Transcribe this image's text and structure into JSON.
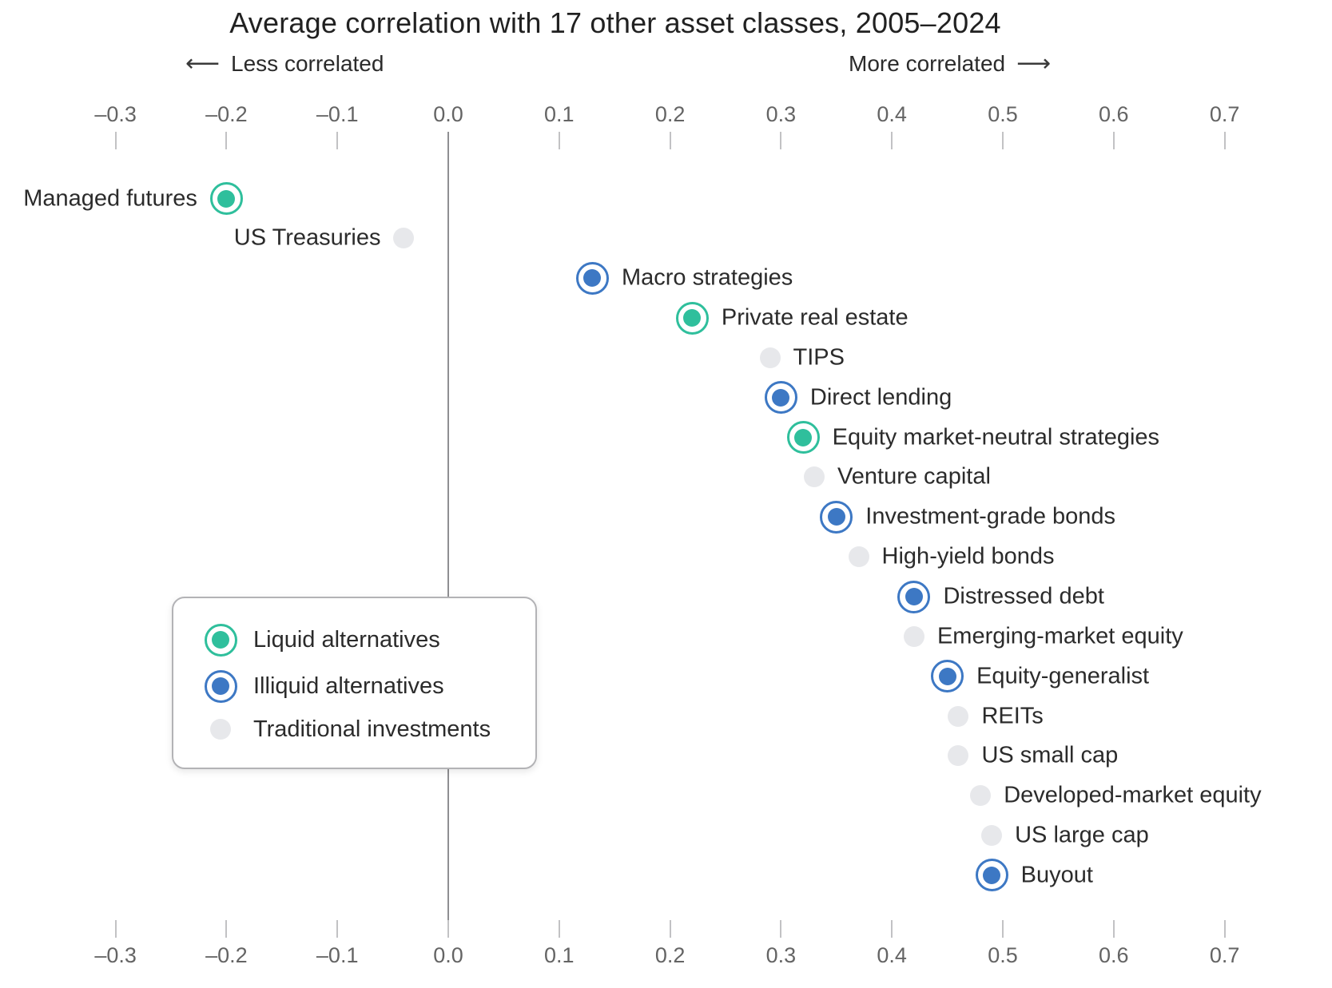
{
  "title": "Average correlation with 17 other asset classes, 2005–2024",
  "direction_labels": {
    "less": "Less correlated",
    "more": "More correlated",
    "left_arrow": "⟵",
    "right_arrow": "⟶"
  },
  "legend": {
    "items": [
      {
        "label": "Liquid alternatives",
        "category": "liquid"
      },
      {
        "label": "Illiquid alternatives",
        "category": "illiquid"
      },
      {
        "label": "Traditional investments",
        "category": "traditional"
      }
    ]
  },
  "colors": {
    "liquid": "#2fbf9c",
    "illiquid": "#3d78c4",
    "traditional": "#e7e8eb",
    "text": "#2b2b2b",
    "axis_text": "#646464",
    "tick_mark": "#c2c2c4",
    "zero_line": "#8f8f92",
    "legend_border": "#b3b3b6"
  },
  "chart_data": {
    "type": "scatter",
    "title": "Average correlation with 17 other asset classes, 2005–2024",
    "xlabel": "Average correlation",
    "ylabel": "",
    "xlim": [
      -0.3,
      0.7
    ],
    "grid": false,
    "legend_position": "boxed, middle-left",
    "x_ticks": [
      -0.3,
      -0.2,
      -0.1,
      0.0,
      0.1,
      0.2,
      0.3,
      0.4,
      0.5,
      0.6,
      0.7
    ],
    "x_tick_labels": [
      "–0.3",
      "–0.2",
      "–0.1",
      "0.0",
      "0.1",
      "0.2",
      "0.3",
      "0.4",
      "0.5",
      "0.6",
      "0.7"
    ],
    "points": [
      {
        "label": "Managed futures",
        "value": -0.2,
        "category": "liquid",
        "label_side": "left"
      },
      {
        "label": "US Treasuries",
        "value": -0.04,
        "category": "traditional",
        "label_side": "left"
      },
      {
        "label": "Macro strategies",
        "value": 0.13,
        "category": "illiquid",
        "label_side": "right"
      },
      {
        "label": "Private real estate",
        "value": 0.22,
        "category": "liquid",
        "label_side": "right"
      },
      {
        "label": "TIPS",
        "value": 0.29,
        "category": "traditional",
        "label_side": "right"
      },
      {
        "label": "Direct lending",
        "value": 0.3,
        "category": "illiquid",
        "label_side": "right"
      },
      {
        "label": "Equity market-neutral strategies",
        "value": 0.32,
        "category": "liquid",
        "label_side": "right"
      },
      {
        "label": "Venture capital",
        "value": 0.33,
        "category": "traditional",
        "label_side": "right"
      },
      {
        "label": "Investment-grade bonds",
        "value": 0.35,
        "category": "illiquid",
        "label_side": "right"
      },
      {
        "label": "High-yield bonds",
        "value": 0.37,
        "category": "traditional",
        "label_side": "right"
      },
      {
        "label": "Distressed debt",
        "value": 0.42,
        "category": "illiquid",
        "label_side": "right"
      },
      {
        "label": "Emerging-market equity",
        "value": 0.42,
        "category": "traditional",
        "label_side": "right"
      },
      {
        "label": "Equity-generalist",
        "value": 0.45,
        "category": "illiquid",
        "label_side": "right"
      },
      {
        "label": "REITs",
        "value": 0.46,
        "category": "traditional",
        "label_side": "right"
      },
      {
        "label": "US small cap",
        "value": 0.46,
        "category": "traditional",
        "label_side": "right"
      },
      {
        "label": "Developed-market equity",
        "value": 0.48,
        "category": "traditional",
        "label_side": "right"
      },
      {
        "label": "US large cap",
        "value": 0.49,
        "category": "traditional",
        "label_side": "right"
      },
      {
        "label": "Buyout",
        "value": 0.49,
        "category": "illiquid",
        "label_side": "right"
      }
    ]
  }
}
